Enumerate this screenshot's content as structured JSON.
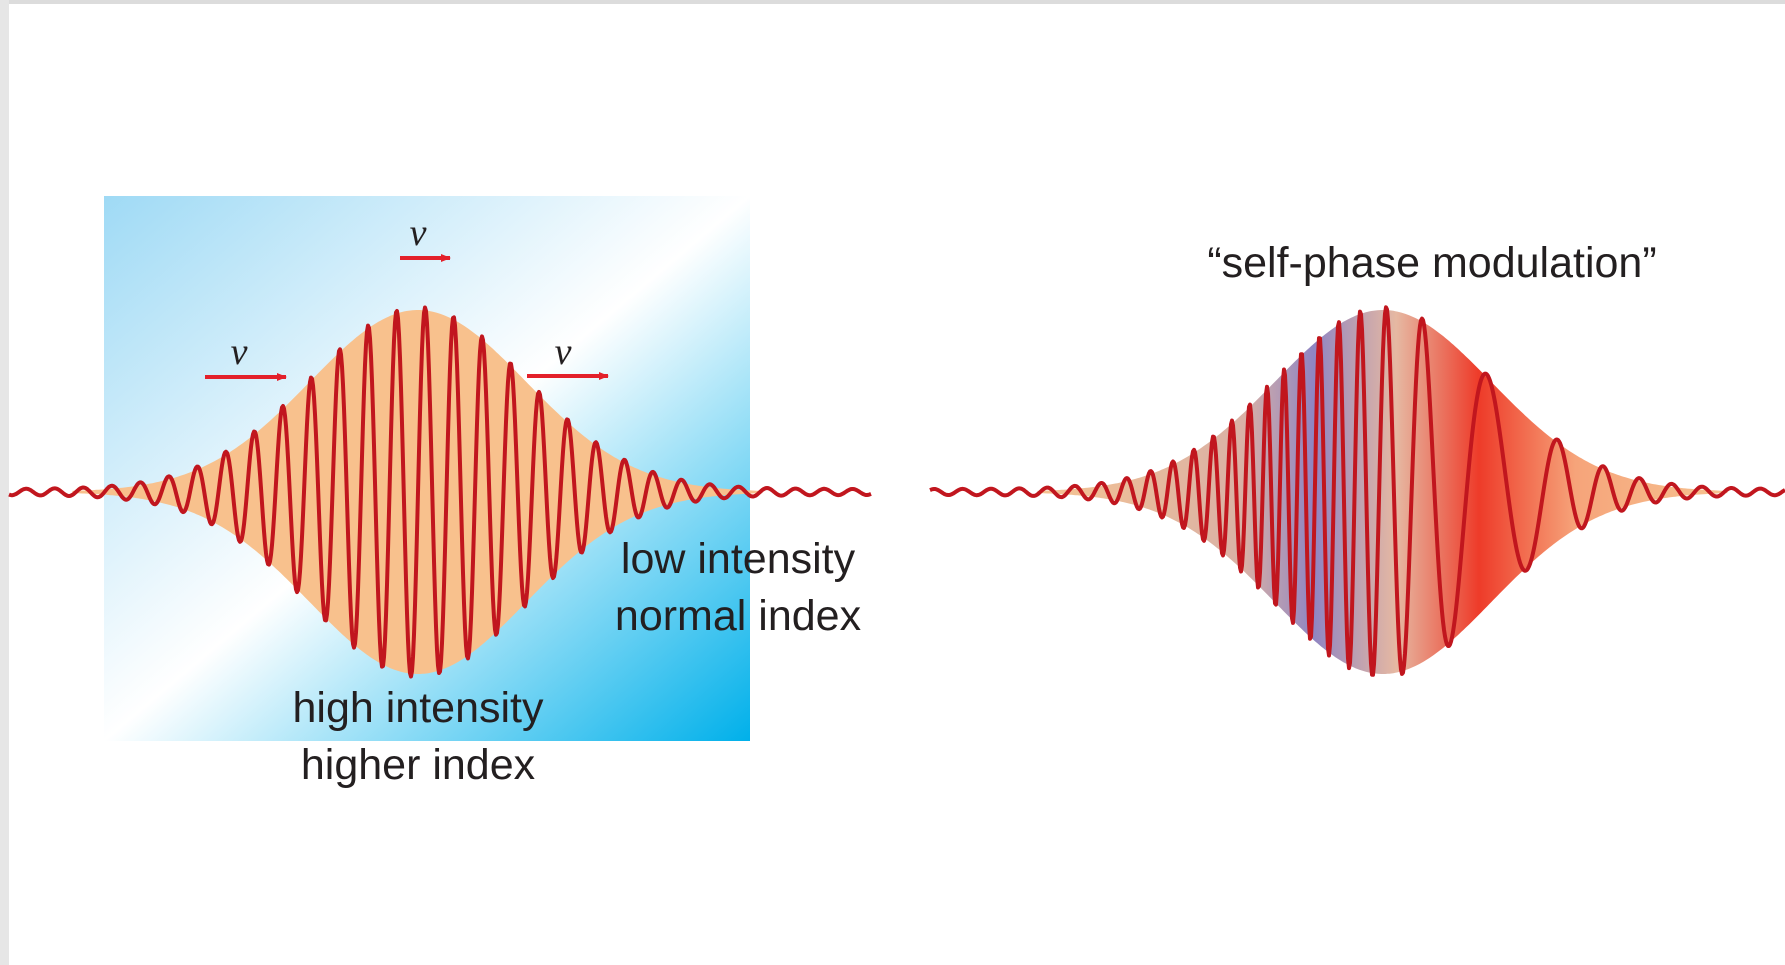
{
  "left_panel": {
    "velocity_labels": [
      "v",
      "v",
      "v"
    ],
    "low_region": [
      "low intensity",
      "normal index"
    ],
    "high_region": [
      "high intensity",
      "higher index"
    ]
  },
  "right_panel": {
    "title": "“self-phase modulation”"
  }
}
